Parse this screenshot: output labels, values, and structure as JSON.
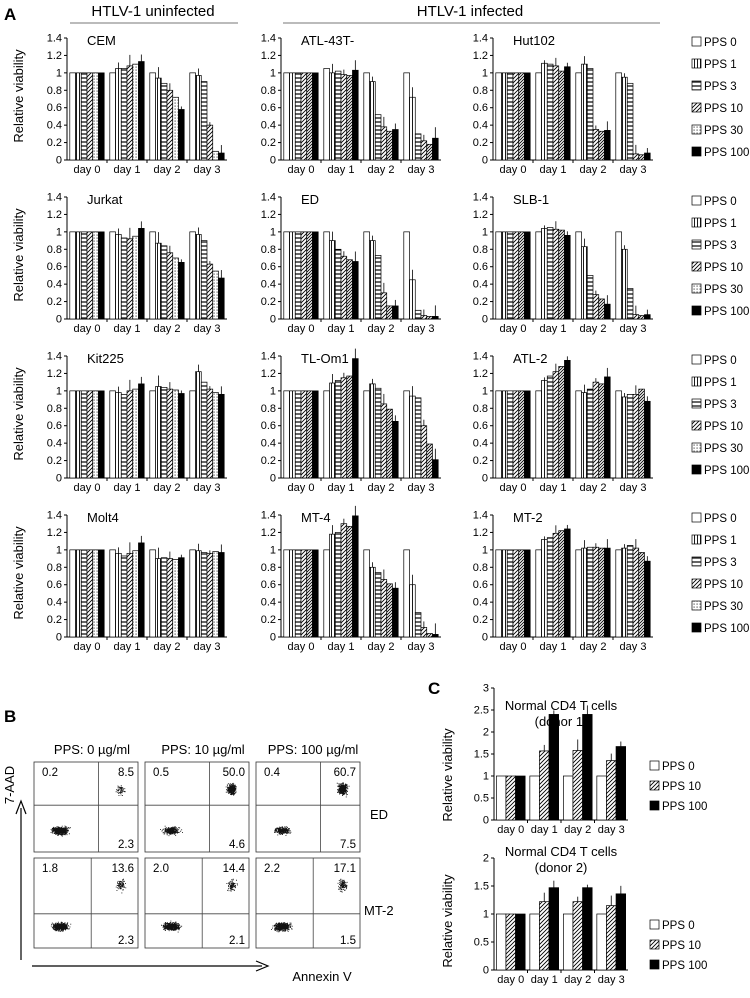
{
  "panel_labels": {
    "a": "A",
    "b": "B",
    "c": "C"
  },
  "group_headers": {
    "uninfected": "HTLV-1 uninfected",
    "infected": "HTLV-1 infected"
  },
  "ylabel": "Relative viability",
  "days": [
    "day 0",
    "day 1",
    "day 2",
    "day 3"
  ],
  "pps_legend": [
    "PPS 0",
    "PPS 1",
    "PPS 3",
    "PPS 10",
    "PPS 30",
    "PPS 100"
  ],
  "pps_legend_c": [
    "PPS 0",
    "PPS 10",
    "PPS 100"
  ],
  "yticks_a": [
    "0",
    "0.2",
    "0.4",
    "0.6",
    "0.8",
    "1",
    "1.2",
    "1.4"
  ],
  "yticks_c1": [
    "0",
    "0.5",
    "1",
    "1.5",
    "2",
    "2.5",
    "3"
  ],
  "yticks_c2": [
    "0",
    "0.5",
    "1",
    "1.5",
    "2"
  ],
  "colors": {
    "bar_stroke": "#000000",
    "grid": "#999999"
  },
  "chart_data": [
    {
      "type": "bar",
      "title": "CEM",
      "ylabel": "Relative viability",
      "ylim": [
        0,
        1.4
      ],
      "categories": [
        "day 0",
        "day 1",
        "day 2",
        "day 3"
      ],
      "series": [
        {
          "name": "PPS 0",
          "values": [
            1,
            1.0,
            1.0,
            1.0
          ]
        },
        {
          "name": "PPS 1",
          "values": [
            1,
            1.05,
            0.94,
            0.97
          ]
        },
        {
          "name": "PPS 3",
          "values": [
            1,
            1.05,
            0.88,
            0.9
          ]
        },
        {
          "name": "PPS 10",
          "values": [
            1,
            1.08,
            0.8,
            0.4
          ]
        },
        {
          "name": "PPS 30",
          "values": [
            1,
            1.1,
            0.72,
            0.1
          ]
        },
        {
          "name": "PPS 100",
          "values": [
            1,
            1.13,
            0.58,
            0.08
          ]
        }
      ]
    },
    {
      "type": "bar",
      "title": "ATL-43T-",
      "ylabel": "Relative viability",
      "ylim": [
        0,
        1.4
      ],
      "categories": [
        "day 0",
        "day 1",
        "day 2",
        "day 3"
      ],
      "series": [
        {
          "name": "PPS 0",
          "values": [
            1,
            1.05,
            1.0,
            1.0
          ]
        },
        {
          "name": "PPS 1",
          "values": [
            1,
            1.0,
            0.9,
            0.72
          ]
        },
        {
          "name": "PPS 3",
          "values": [
            1,
            1.02,
            0.52,
            0.3
          ]
        },
        {
          "name": "PPS 10",
          "values": [
            1,
            0.98,
            0.38,
            0.22
          ]
        },
        {
          "name": "PPS 30",
          "values": [
            1,
            0.97,
            0.33,
            0.18
          ]
        },
        {
          "name": "PPS 100",
          "values": [
            1,
            1.03,
            0.35,
            0.25
          ]
        }
      ]
    },
    {
      "type": "bar",
      "title": "Hut102",
      "ylabel": "Relative viability",
      "ylim": [
        0,
        1.4
      ],
      "categories": [
        "day 0",
        "day 1",
        "day 2",
        "day 3"
      ],
      "series": [
        {
          "name": "PPS 0",
          "values": [
            1,
            1.0,
            1.0,
            1.0
          ]
        },
        {
          "name": "PPS 1",
          "values": [
            1,
            1.11,
            1.1,
            0.95
          ]
        },
        {
          "name": "PPS 3",
          "values": [
            1,
            1.1,
            1.05,
            0.88
          ]
        },
        {
          "name": "PPS 10",
          "values": [
            1,
            1.08,
            0.35,
            0.07
          ]
        },
        {
          "name": "PPS 30",
          "values": [
            1,
            1.02,
            0.33,
            0.06
          ]
        },
        {
          "name": "PPS 100",
          "values": [
            1,
            1.07,
            0.34,
            0.08
          ]
        }
      ]
    },
    {
      "type": "bar",
      "title": "Jurkat",
      "ylabel": "Relative viability",
      "ylim": [
        0,
        1.4
      ],
      "categories": [
        "day 0",
        "day 1",
        "day 2",
        "day 3"
      ],
      "series": [
        {
          "name": "PPS 0",
          "values": [
            1,
            1.0,
            1.0,
            1.0
          ]
        },
        {
          "name": "PPS 1",
          "values": [
            1,
            0.97,
            0.87,
            0.97
          ]
        },
        {
          "name": "PPS 3",
          "values": [
            1,
            0.93,
            0.84,
            0.9
          ]
        },
        {
          "name": "PPS 10",
          "values": [
            1,
            0.92,
            0.76,
            0.63
          ]
        },
        {
          "name": "PPS 30",
          "values": [
            1,
            0.95,
            0.7,
            0.55
          ]
        },
        {
          "name": "PPS 100",
          "values": [
            1,
            1.04,
            0.65,
            0.47
          ]
        }
      ]
    },
    {
      "type": "bar",
      "title": "ED",
      "ylabel": "Relative viability",
      "ylim": [
        0,
        1.4
      ],
      "categories": [
        "day 0",
        "day 1",
        "day 2",
        "day 3"
      ],
      "series": [
        {
          "name": "PPS 0",
          "values": [
            1,
            1.0,
            1.0,
            1.0
          ]
        },
        {
          "name": "PPS 1",
          "values": [
            1,
            0.9,
            0.9,
            0.45
          ]
        },
        {
          "name": "PPS 3",
          "values": [
            1,
            0.8,
            0.73,
            0.1
          ]
        },
        {
          "name": "PPS 10",
          "values": [
            1,
            0.72,
            0.3,
            0.04
          ]
        },
        {
          "name": "PPS 30",
          "values": [
            1,
            0.68,
            0.15,
            0.03
          ]
        },
        {
          "name": "PPS 100",
          "values": [
            1,
            0.66,
            0.15,
            0.03
          ]
        }
      ]
    },
    {
      "type": "bar",
      "title": "SLB-1",
      "ylabel": "Relative viability",
      "ylim": [
        0,
        1.4
      ],
      "categories": [
        "day 0",
        "day 1",
        "day 2",
        "day 3"
      ],
      "series": [
        {
          "name": "PPS 0",
          "values": [
            1,
            1.0,
            1.0,
            1.0
          ]
        },
        {
          "name": "PPS 1",
          "values": [
            1,
            1.04,
            0.83,
            0.8
          ]
        },
        {
          "name": "PPS 3",
          "values": [
            1,
            1.05,
            0.5,
            0.35
          ]
        },
        {
          "name": "PPS 10",
          "values": [
            1,
            1.03,
            0.28,
            0.05
          ]
        },
        {
          "name": "PPS 30",
          "values": [
            1,
            1.02,
            0.23,
            0.04
          ]
        },
        {
          "name": "PPS 100",
          "values": [
            1,
            0.96,
            0.17,
            0.05
          ]
        }
      ]
    },
    {
      "type": "bar",
      "title": "Kit225",
      "ylabel": "Relative viability",
      "ylim": [
        0,
        1.4
      ],
      "categories": [
        "day 0",
        "day 1",
        "day 2",
        "day 3"
      ],
      "series": [
        {
          "name": "PPS 0",
          "values": [
            1,
            1.0,
            1.0,
            1.0
          ]
        },
        {
          "name": "PPS 1",
          "values": [
            1,
            0.98,
            1.05,
            1.22
          ]
        },
        {
          "name": "PPS 3",
          "values": [
            1,
            0.96,
            1.04,
            1.1
          ]
        },
        {
          "name": "PPS 10",
          "values": [
            1,
            1.0,
            1.02,
            1.02
          ]
        },
        {
          "name": "PPS 30",
          "values": [
            1,
            1.02,
            1.01,
            0.98
          ]
        },
        {
          "name": "PPS 100",
          "values": [
            1,
            1.08,
            0.97,
            0.96
          ]
        }
      ]
    },
    {
      "type": "bar",
      "title": "TL-Om1",
      "ylabel": "Relative viability",
      "ylim": [
        0,
        1.4
      ],
      "categories": [
        "day 0",
        "day 1",
        "day 2",
        "day 3"
      ],
      "series": [
        {
          "name": "PPS 0",
          "values": [
            1,
            1.0,
            1.0,
            1.0
          ]
        },
        {
          "name": "PPS 1",
          "values": [
            1,
            1.09,
            1.08,
            0.94
          ]
        },
        {
          "name": "PPS 3",
          "values": [
            1,
            1.12,
            1.03,
            0.92
          ]
        },
        {
          "name": "PPS 10",
          "values": [
            1,
            1.15,
            0.85,
            0.6
          ]
        },
        {
          "name": "PPS 30",
          "values": [
            1,
            1.17,
            0.79,
            0.39
          ]
        },
        {
          "name": "PPS 100",
          "values": [
            1,
            1.37,
            0.65,
            0.21
          ]
        }
      ]
    },
    {
      "type": "bar",
      "title": "ATL-2",
      "ylabel": "Relative viability",
      "ylim": [
        0,
        1.4
      ],
      "categories": [
        "day 0",
        "day 1",
        "day 2",
        "day 3"
      ],
      "series": [
        {
          "name": "PPS 0",
          "values": [
            1,
            1.0,
            1.0,
            1.0
          ]
        },
        {
          "name": "PPS 1",
          "values": [
            1,
            1.12,
            0.98,
            0.93
          ]
        },
        {
          "name": "PPS 3",
          "values": [
            1,
            1.17,
            1.02,
            0.96
          ]
        },
        {
          "name": "PPS 10",
          "values": [
            1,
            1.22,
            1.1,
            0.96
          ]
        },
        {
          "name": "PPS 30",
          "values": [
            1,
            1.28,
            1.08,
            1.02
          ]
        },
        {
          "name": "PPS 100",
          "values": [
            1,
            1.35,
            1.16,
            0.88
          ]
        }
      ]
    },
    {
      "type": "bar",
      "title": "Molt4",
      "ylabel": "Relative viability",
      "ylim": [
        0,
        1.4
      ],
      "categories": [
        "day 0",
        "day 1",
        "day 2",
        "day 3"
      ],
      "series": [
        {
          "name": "PPS 0",
          "values": [
            1,
            1.0,
            1.0,
            1.0
          ]
        },
        {
          "name": "PPS 1",
          "values": [
            1,
            0.96,
            0.9,
            0.99
          ]
        },
        {
          "name": "PPS 3",
          "values": [
            1,
            0.93,
            0.91,
            0.97
          ]
        },
        {
          "name": "PPS 10",
          "values": [
            1,
            0.96,
            0.9,
            0.96
          ]
        },
        {
          "name": "PPS 30",
          "values": [
            1,
            0.99,
            0.89,
            0.98
          ]
        },
        {
          "name": "PPS 100",
          "values": [
            1,
            1.08,
            0.91,
            0.97
          ]
        }
      ]
    },
    {
      "type": "bar",
      "title": "MT-4",
      "ylabel": "Relative viability",
      "ylim": [
        0,
        1.4
      ],
      "categories": [
        "day 0",
        "day 1",
        "day 2",
        "day 3"
      ],
      "series": [
        {
          "name": "PPS 0",
          "values": [
            1,
            1.0,
            1.0,
            1.0
          ]
        },
        {
          "name": "PPS 1",
          "values": [
            1,
            1.18,
            0.8,
            0.6
          ]
        },
        {
          "name": "PPS 3",
          "values": [
            1,
            1.2,
            0.74,
            0.28
          ]
        },
        {
          "name": "PPS 10",
          "values": [
            1,
            1.3,
            0.66,
            0.11
          ]
        },
        {
          "name": "PPS 30",
          "values": [
            1,
            1.27,
            0.61,
            0.04
          ]
        },
        {
          "name": "PPS 100",
          "values": [
            1,
            1.39,
            0.56,
            0.03
          ]
        }
      ]
    },
    {
      "type": "bar",
      "title": "MT-2",
      "ylabel": "Relative viability",
      "ylim": [
        0,
        1.4
      ],
      "categories": [
        "day 0",
        "day 1",
        "day 2",
        "day 3"
      ],
      "series": [
        {
          "name": "PPS 0",
          "values": [
            1,
            1.0,
            1.0,
            1.0
          ]
        },
        {
          "name": "PPS 1",
          "values": [
            1,
            1.12,
            1.02,
            1.02
          ]
        },
        {
          "name": "PPS 3",
          "values": [
            1,
            1.14,
            1.03,
            1.05
          ]
        },
        {
          "name": "PPS 10",
          "values": [
            1,
            1.19,
            1.03,
            1.02
          ]
        },
        {
          "name": "PPS 30",
          "values": [
            1,
            1.22,
            1.02,
            0.97
          ]
        },
        {
          "name": "PPS 100",
          "values": [
            1,
            1.24,
            1.02,
            0.87
          ]
        }
      ]
    },
    {
      "type": "bar",
      "title": "Normal CD4 T cells (donor 1)",
      "title_lines": [
        "Normal CD4 T cells",
        "(donor 1)"
      ],
      "ylabel": "Relative viability",
      "ylim": [
        0,
        3
      ],
      "categories": [
        "day 0",
        "day 1",
        "day 2",
        "day 3"
      ],
      "series": [
        {
          "name": "PPS 0",
          "values": [
            1,
            1.0,
            1.0,
            1.0
          ]
        },
        {
          "name": "PPS 10",
          "values": [
            1,
            1.57,
            1.58,
            1.35
          ]
        },
        {
          "name": "PPS 100",
          "values": [
            1,
            2.4,
            2.4,
            1.67
          ]
        }
      ]
    },
    {
      "type": "bar",
      "title": "Normal CD4 T cells (donor 2)",
      "title_lines": [
        "Normal CD4 T cells",
        "(donor 2)"
      ],
      "ylabel": "Relative viability",
      "ylim": [
        0,
        2
      ],
      "categories": [
        "day 0",
        "day 1",
        "day 2",
        "day 3"
      ],
      "series": [
        {
          "name": "PPS 0",
          "values": [
            1,
            1.0,
            1.0,
            1.0
          ]
        },
        {
          "name": "PPS 10",
          "values": [
            1,
            1.22,
            1.22,
            1.15
          ]
        },
        {
          "name": "PPS 100",
          "values": [
            1,
            1.47,
            1.47,
            1.36
          ]
        }
      ]
    }
  ],
  "flow": {
    "y_axis": "7-AAD",
    "x_axis": "Annexin V",
    "conditions": [
      "PPS: 0 µg/ml",
      "PPS: 10 µg/ml",
      "PPS: 100 µg/ml"
    ],
    "rows": [
      {
        "label": "ED",
        "plots": [
          {
            "ul": "0.2",
            "ur": "8.5",
            "lr": "2.3"
          },
          {
            "ul": "0.5",
            "ur": "50.0",
            "lr": "4.6"
          },
          {
            "ul": "0.4",
            "ur": "60.7",
            "lr": "7.5"
          }
        ]
      },
      {
        "label": "MT-2",
        "plots": [
          {
            "ul": "1.8",
            "ur": "13.6",
            "lr": "2.3"
          },
          {
            "ul": "2.0",
            "ur": "14.4",
            "lr": "2.1"
          },
          {
            "ul": "2.2",
            "ur": "17.1",
            "lr": "1.5"
          }
        ]
      }
    ]
  }
}
